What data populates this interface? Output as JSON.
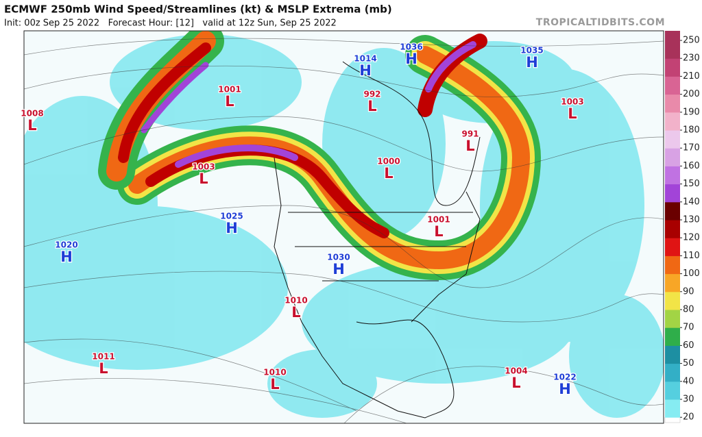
{
  "header": {
    "title": "ECMWF 250mb Wind Speed/Streamlines (kt) & MSLP Extrema (mb)",
    "subtitle": "Init: 00z Sep 25 2022   Forecast Hour: [12]   valid at 12z Sun, Sep 25 2022",
    "site": "TROPICALTIDBITS.COM"
  },
  "colorbar": {
    "ticks": [
      20,
      30,
      40,
      50,
      60,
      70,
      80,
      90,
      100,
      110,
      120,
      130,
      140,
      150,
      160,
      170,
      180,
      190,
      200,
      210,
      230,
      250
    ],
    "colors": [
      "#86ecf2",
      "#55cfdf",
      "#33afc6",
      "#1d8fa2",
      "#2fae4a",
      "#a2d445",
      "#f2e447",
      "#f8a626",
      "#f06814",
      "#e01414",
      "#a80000",
      "#6a0000",
      "#a244d8",
      "#c072e2",
      "#d8a2e4",
      "#ecc8ec",
      "#f2b2ca",
      "#e98aaa",
      "#d96494",
      "#c24274",
      "#a8325a"
    ]
  },
  "centers": [
    {
      "value": 1008,
      "letter": "L"
    },
    {
      "value": 1001,
      "letter": "L"
    },
    {
      "value": 1003,
      "letter": "L"
    },
    {
      "value": 1025,
      "letter": "H"
    },
    {
      "value": 1020,
      "letter": "H"
    },
    {
      "value": 1014,
      "letter": "H"
    },
    {
      "value": 992,
      "letter": "L"
    },
    {
      "value": 1036,
      "letter": "H"
    },
    {
      "value": 1035,
      "letter": "H"
    },
    {
      "value": 1003,
      "letter": "L"
    },
    {
      "value": 991,
      "letter": "L"
    },
    {
      "value": 1000,
      "letter": "L"
    },
    {
      "value": 1001,
      "letter": "L"
    },
    {
      "value": 1030,
      "letter": "H"
    },
    {
      "value": 1010,
      "letter": "L"
    },
    {
      "value": 1011,
      "letter": "L"
    },
    {
      "value": 1010,
      "letter": "L"
    },
    {
      "value": 1004,
      "letter": "L"
    },
    {
      "value": 1022,
      "letter": "H"
    }
  ]
}
